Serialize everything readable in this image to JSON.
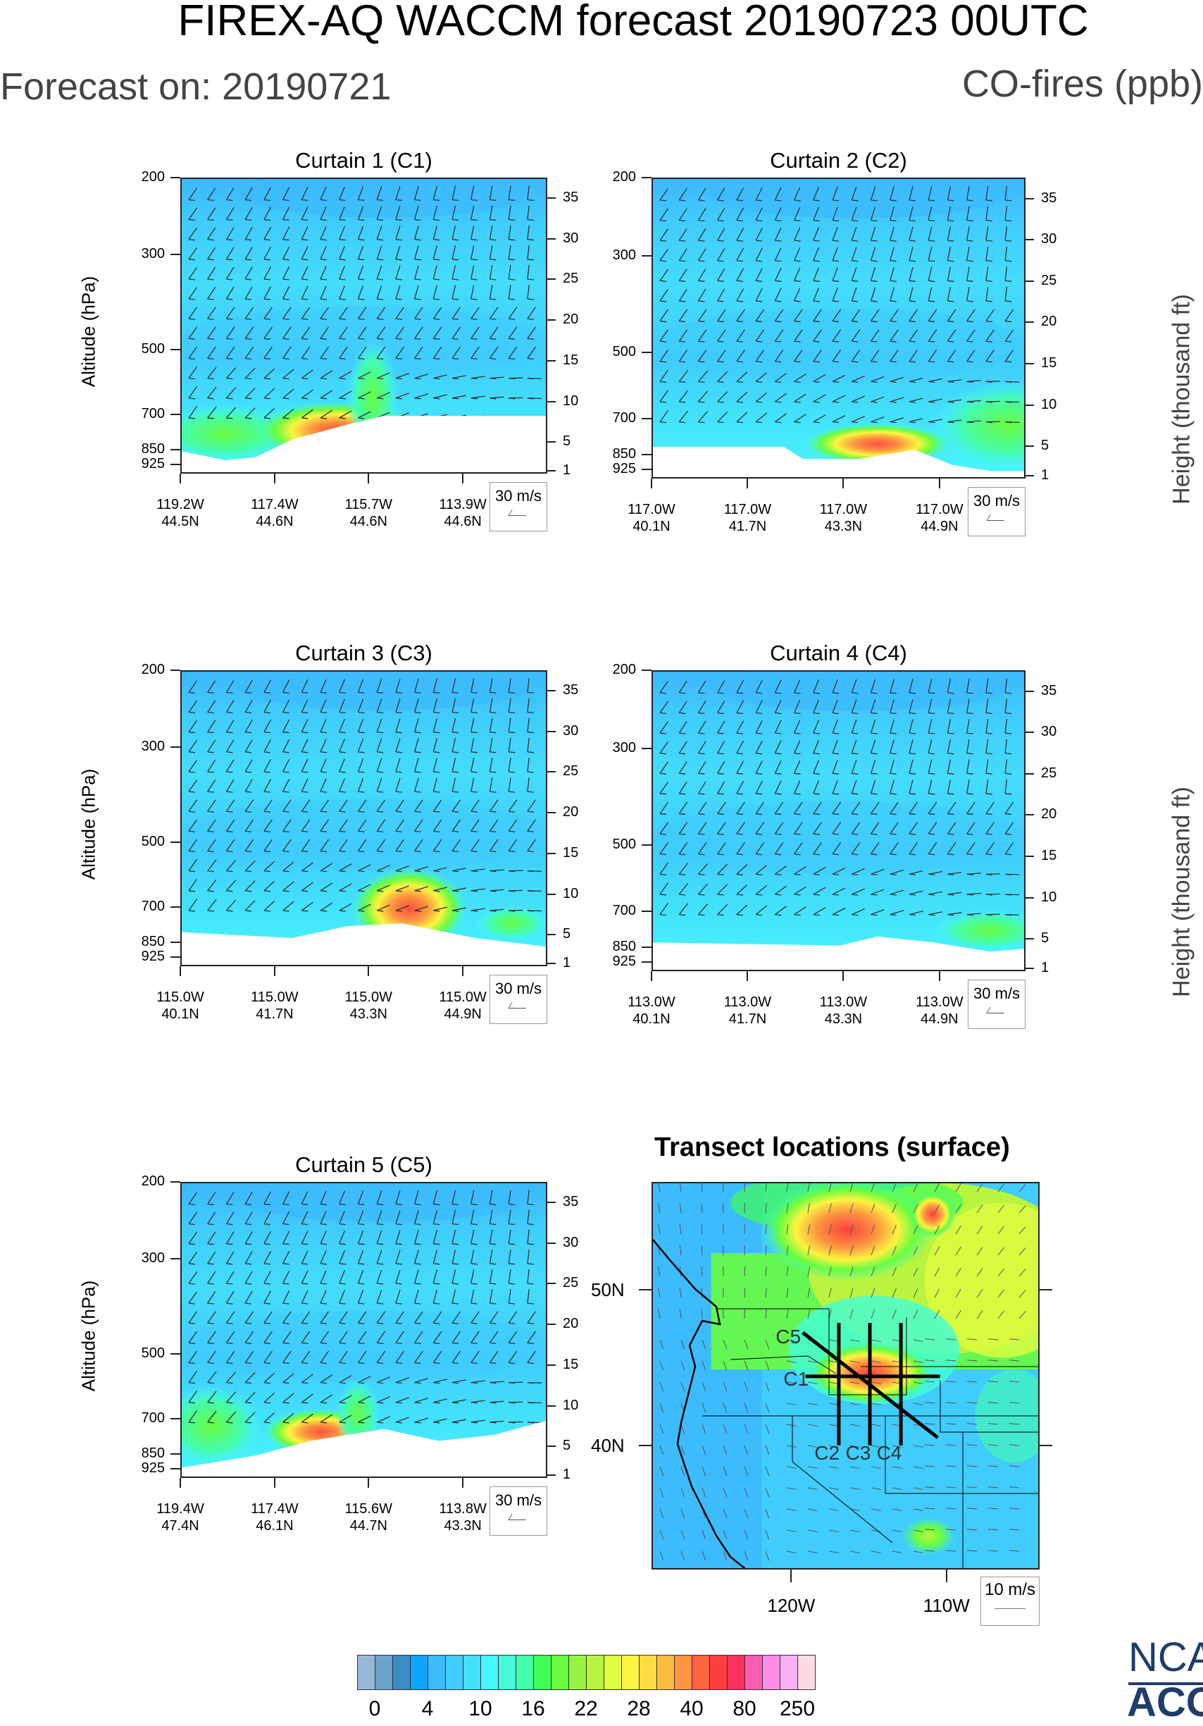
{
  "title": "FIREX-AQ WACCM forecast 20190723 00UTC",
  "forecast_on": "Forecast on: 20190721",
  "variable": "CO-fires (ppb)",
  "y_axis_label": "Altitude (hPa)",
  "y_ticks": [
    "200",
    "300",
    "500",
    "700",
    "850",
    "925"
  ],
  "right_axis_label": "Height (thousand ft)",
  "right_ticks": [
    "35",
    "30",
    "25",
    "20",
    "15",
    "10",
    "5",
    "1"
  ],
  "curtains": [
    {
      "title": "Curtain 1 (C1)",
      "legend": "30 m/s",
      "x_labels": [
        [
          "119.2W",
          "44.5N"
        ],
        [
          "117.4W",
          "44.6N"
        ],
        [
          "115.7W",
          "44.6N"
        ],
        [
          "113.9W",
          "44.6N"
        ]
      ]
    },
    {
      "title": "Curtain 2 (C2)",
      "legend": "30 m/s",
      "x_labels": [
        [
          "117.0W",
          "40.1N"
        ],
        [
          "117.0W",
          "41.7N"
        ],
        [
          "117.0W",
          "43.3N"
        ],
        [
          "117.0W",
          "44.9N"
        ]
      ]
    },
    {
      "title": "Curtain 3 (C3)",
      "legend": "30 m/s",
      "x_labels": [
        [
          "115.0W",
          "40.1N"
        ],
        [
          "115.0W",
          "41.7N"
        ],
        [
          "115.0W",
          "43.3N"
        ],
        [
          "115.0W",
          "44.9N"
        ]
      ]
    },
    {
      "title": "Curtain 4 (C4)",
      "legend": "30 m/s",
      "x_labels": [
        [
          "113.0W",
          "40.1N"
        ],
        [
          "113.0W",
          "41.7N"
        ],
        [
          "113.0W",
          "43.3N"
        ],
        [
          "113.0W",
          "44.9N"
        ]
      ]
    },
    {
      "title": "Curtain 5 (C5)",
      "legend": "30 m/s",
      "x_labels": [
        [
          "119.4W",
          "47.4N"
        ],
        [
          "117.4W",
          "46.1N"
        ],
        [
          "115.6W",
          "44.7N"
        ],
        [
          "113.8W",
          "43.3N"
        ]
      ]
    }
  ],
  "map": {
    "title": "Transect locations (surface)",
    "lat_labels": [
      "50N",
      "40N"
    ],
    "lon_labels": [
      "120W",
      "110W"
    ],
    "transects": [
      "C1",
      "C2",
      "C3",
      "C4",
      "C5"
    ],
    "legend": "10 m/s"
  },
  "colorbar": {
    "colors": [
      "#98b8d8",
      "#6aa3cc",
      "#3a8ec4",
      "#10a4fc",
      "#3cbcfc",
      "#40ccfc",
      "#44e0fc",
      "#48f8fc",
      "#44fcd8",
      "#44fcac",
      "#40fc54",
      "#68fc40",
      "#98f440",
      "#b8f440",
      "#e0fc40",
      "#fcf440",
      "#fcdc40",
      "#fcbc40",
      "#fc9440",
      "#fc6440",
      "#fc4040",
      "#fc3060",
      "#fc5cb4",
      "#fc8ce4",
      "#fcb0f4",
      "#fcdce0"
    ],
    "labels": [
      "0",
      "4",
      "10",
      "16",
      "22",
      "28",
      "40",
      "80",
      "250"
    ]
  },
  "logo": {
    "line1": "NCA",
    "line2": "ACO"
  }
}
